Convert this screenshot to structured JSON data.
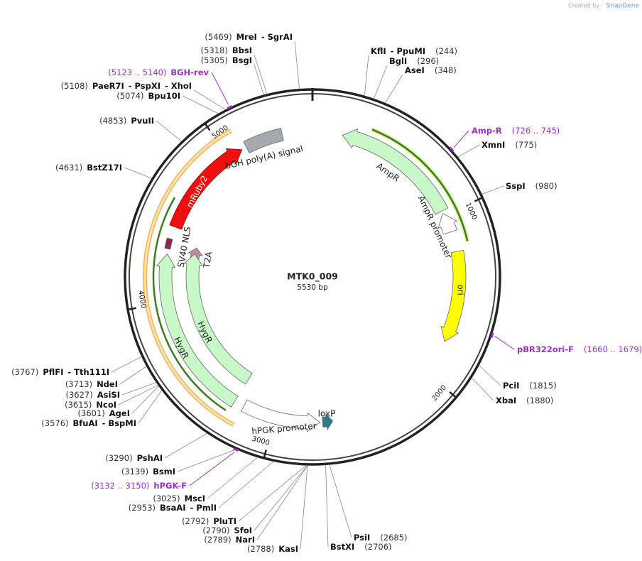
{
  "credit": {
    "prefix": "Created by",
    "brand": "SnapGene"
  },
  "plasmid": {
    "name": "MTK0_009",
    "size": "5530 bp"
  },
  "ring_ticks": [
    "1000",
    "2000",
    "3000",
    "4000",
    "5000"
  ],
  "features": [
    "bGH poly(A) signal",
    "mRuby2",
    "SV40 NLS",
    "T2A",
    "AmpR",
    "AmpR promoter",
    "ori",
    "HygR",
    "HygR",
    "hPGK promoter",
    "loxP"
  ],
  "sites": [
    {
      "position": "(5469)",
      "names": [
        "MreI",
        "- SgrAI"
      ]
    },
    {
      "position": "(5318)",
      "names": [
        "BbsI"
      ]
    },
    {
      "position": "(5305)",
      "names": [
        "BsgI"
      ]
    },
    {
      "position": "(5108)",
      "names": [
        "PaeR7I",
        "- PspXI",
        "- XhoI"
      ]
    },
    {
      "position": "(5074)",
      "names": [
        "Bpu10I"
      ]
    },
    {
      "position": "(4853)",
      "names": [
        "PvuII"
      ]
    },
    {
      "position": "(4631)",
      "names": [
        "BstZ17I"
      ]
    },
    {
      "position": "(3767)",
      "names": [
        "PflFI",
        "- Tth111I"
      ]
    },
    {
      "position": "(3713)",
      "names": [
        "NdeI"
      ]
    },
    {
      "position": "(3627)",
      "names": [
        "AsiSI"
      ]
    },
    {
      "position": "(3615)",
      "names": [
        "NcoI"
      ]
    },
    {
      "position": "(3601)",
      "names": [
        "AgeI"
      ]
    },
    {
      "position": "(3576)",
      "names": [
        "BfuAI",
        "- BspMI"
      ]
    },
    {
      "position": "(3290)",
      "names": [
        "PshAI"
      ]
    },
    {
      "position": "(3139)",
      "names": [
        "BsmI"
      ]
    },
    {
      "position": "(3025)",
      "names": [
        "MscI"
      ]
    },
    {
      "position": "(2953)",
      "names": [
        "BsaAI",
        "- PmlI"
      ]
    },
    {
      "position": "(2792)",
      "names": [
        "PluTI"
      ]
    },
    {
      "position": "(2790)",
      "names": [
        "SfoI"
      ]
    },
    {
      "position": "(2789)",
      "names": [
        "NarI"
      ]
    },
    {
      "position": "(2788)",
      "names": [
        "KasI"
      ]
    },
    {
      "position": "(244)",
      "names": [
        "KflI",
        "- PpuMI"
      ]
    },
    {
      "position": "(296)",
      "names": [
        "BglI"
      ]
    },
    {
      "position": "(348)",
      "names": [
        "AseI"
      ]
    },
    {
      "position": "(775)",
      "names": [
        "XmnI"
      ]
    },
    {
      "position": "(980)",
      "names": [
        "SspI"
      ]
    },
    {
      "position": "(1815)",
      "names": [
        "PciI"
      ]
    },
    {
      "position": "(1880)",
      "names": [
        "XbaI"
      ]
    },
    {
      "position": "(2685)",
      "names": [
        "PsiI"
      ]
    },
    {
      "position": "(2706)",
      "names": [
        "BstXI"
      ]
    }
  ],
  "primers": [
    {
      "position": "(5123 .. 5140)",
      "name": "BGH-rev"
    },
    {
      "position": "(3132 .. 3150)",
      "name": "hPGK-F"
    },
    {
      "position": "(726 .. 745)",
      "name": "Amp-R"
    },
    {
      "position": "(1660 .. 1679)",
      "name": "pBR322ori-F"
    }
  ]
}
